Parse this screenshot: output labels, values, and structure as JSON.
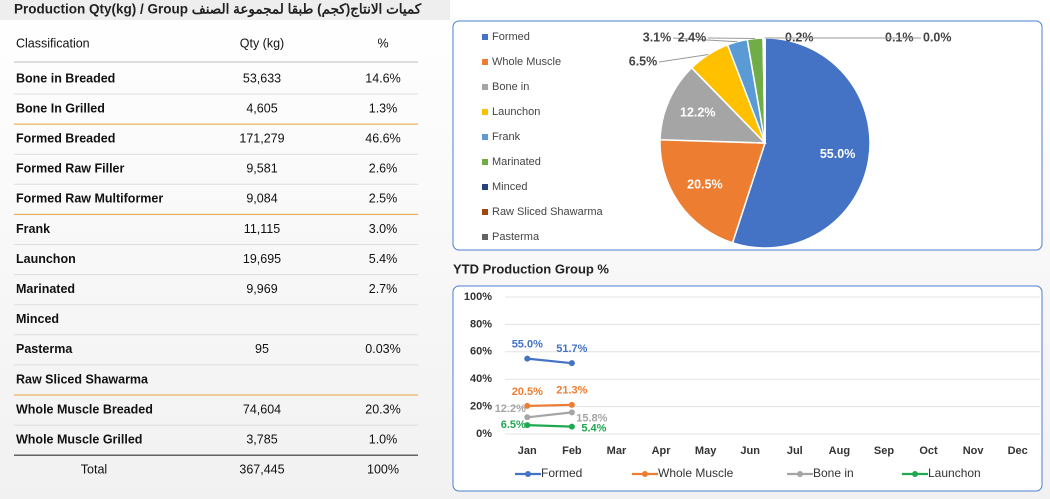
{
  "title": "Production Qty(kg) / Group كميات الانتاج(كجم) طبقا لمجموعة الصنف",
  "table": {
    "header": [
      "Classification",
      "Qty (kg)",
      "%"
    ],
    "rows": [
      [
        "Bone in Breaded",
        "53,633",
        "14.6%"
      ],
      [
        "Bone In Grilled",
        "4,605",
        "1.3%"
      ],
      [
        "Formed Breaded",
        "171,279",
        "46.6%"
      ],
      [
        "Formed Raw Filler",
        "9,581",
        "2.6%"
      ],
      [
        "Formed Raw Multiformer",
        "9,084",
        "2.5%"
      ],
      [
        "Frank",
        "11,115",
        "3.0%"
      ],
      [
        "Launchon",
        "19,695",
        "5.4%"
      ],
      [
        "Marinated",
        "9,969",
        "2.7%"
      ],
      [
        "Minced",
        null,
        null
      ],
      [
        "Pasterma",
        "95",
        "0.03%"
      ],
      [
        "Raw Sliced Shawarma",
        null,
        null
      ],
      [
        "Whole Muscle Breaded",
        "74,604",
        "20.3%"
      ],
      [
        "Whole Muscle Grilled",
        "3,785",
        "1.0%"
      ]
    ],
    "total": [
      "Total",
      "367,445",
      "100%"
    ]
  },
  "chart_data": [
    {
      "type": "pie",
      "categories": [
        "Formed",
        "Whole Muscle",
        "Bone in",
        "Launchon",
        "Frank",
        "Marinated",
        "Minced",
        "Raw Sliced Shawarma",
        "Pasterma"
      ],
      "values": [
        55.0,
        20.5,
        12.2,
        6.5,
        3.1,
        2.4,
        0.2,
        0.1,
        0.0
      ],
      "value_labels": [
        "55.0%",
        "20.5%",
        "12.2%",
        "6.5%",
        "3.1%",
        "2.4%",
        "0.2%",
        "0.1%",
        "0.0%"
      ],
      "colors": [
        "#4472c4",
        "#ed7d31",
        "#a5a5a5",
        "#ffc000",
        "#5b9bd5",
        "#70ad47",
        "#264478",
        "#9e480e",
        "#636363"
      ],
      "legend": "left"
    },
    {
      "type": "line",
      "title": "YTD Production Group %",
      "categories": [
        "Jan",
        "Feb",
        "Mar",
        "Apr",
        "May",
        "Jun",
        "Jul",
        "Aug",
        "Sep",
        "Oct",
        "Nov",
        "Dec"
      ],
      "ylim": [
        0,
        100
      ],
      "yticks": [
        {
          "value": 0,
          "label": "0%"
        },
        {
          "value": 20,
          "label": "20%"
        },
        {
          "value": 40,
          "label": "40%"
        },
        {
          "value": 60,
          "label": "60%"
        },
        {
          "value": 80,
          "label": "80%"
        },
        {
          "value": 100,
          "label": "100%"
        }
      ],
      "grid": true,
      "legend": "bottom",
      "series": [
        {
          "name": "Formed",
          "color": "#4472c4",
          "values": [
            55.0,
            51.7,
            null,
            null,
            null,
            null,
            null,
            null,
            null,
            null,
            null,
            null
          ],
          "value_labels": [
            "55.0%",
            "51.7%",
            null,
            null,
            null,
            null,
            null,
            null,
            null,
            null,
            null,
            null
          ]
        },
        {
          "name": "Whole Muscle",
          "color": "#ed7d31",
          "values": [
            20.5,
            21.3,
            null,
            null,
            null,
            null,
            null,
            null,
            null,
            null,
            null,
            null
          ],
          "value_labels": [
            "20.5%",
            "21.3%",
            null,
            null,
            null,
            null,
            null,
            null,
            null,
            null,
            null,
            null
          ]
        },
        {
          "name": "Bone in",
          "color": "#a5a5a5",
          "values": [
            12.2,
            15.8,
            null,
            null,
            null,
            null,
            null,
            null,
            null,
            null,
            null,
            null
          ],
          "value_labels": [
            "12.2%",
            "15.8%",
            null,
            null,
            null,
            null,
            null,
            null,
            null,
            null,
            null,
            null
          ]
        },
        {
          "name": "Launchon",
          "color": "#1fa84f",
          "values": [
            6.5,
            5.4,
            null,
            null,
            null,
            null,
            null,
            null,
            null,
            null,
            null,
            null
          ],
          "value_labels": [
            "6.5%",
            "5.4%",
            null,
            null,
            null,
            null,
            null,
            null,
            null,
            null,
            null,
            null
          ]
        }
      ]
    }
  ]
}
